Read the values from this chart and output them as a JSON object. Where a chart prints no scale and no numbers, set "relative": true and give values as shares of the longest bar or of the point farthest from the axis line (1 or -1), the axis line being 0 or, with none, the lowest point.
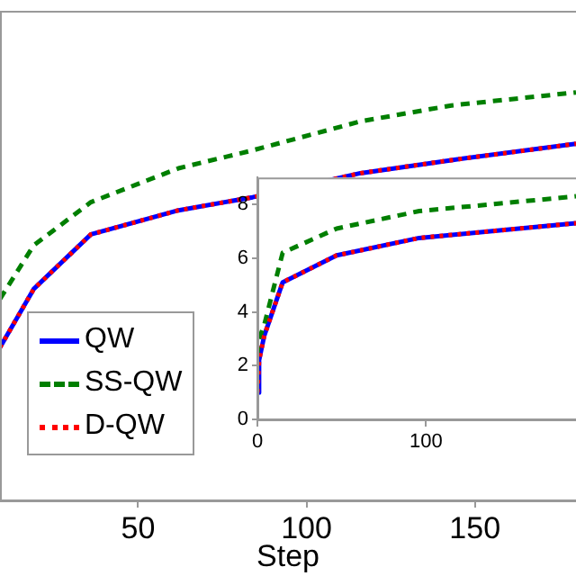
{
  "chart_data": [
    {
      "type": "line",
      "xlabel": "Step",
      "relative": true,
      "x": [
        9,
        19,
        36,
        62,
        84,
        116,
        143,
        180
      ],
      "xlim": [
        9,
        180
      ],
      "xticks": [
        50,
        100,
        150
      ],
      "grid": false,
      "legend": "bottom left",
      "marker": "none",
      "tick_labels": "x",
      "series": [
        {
          "name": "QW",
          "color": "#0000ff",
          "line_style": "solid",
          "values": [
            0.375,
            0.518,
            0.652,
            0.711,
            0.743,
            0.802,
            0.834,
            0.874
          ]
        },
        {
          "name": "SS-QW",
          "color": "#007f00",
          "line_style": "dashed",
          "values": [
            0.494,
            0.625,
            0.731,
            0.814,
            0.858,
            0.929,
            0.968,
            1
          ]
        },
        {
          "name": "D-QW",
          "color": "#ff0000",
          "line_style": "dotted",
          "values": [
            0.375,
            0.518,
            0.652,
            0.711,
            0.743,
            0.802,
            0.834,
            0.874
          ]
        }
      ]
    },
    {
      "type": "line",
      "x": [
        0,
        1,
        4,
        15,
        47,
        96,
        189
      ],
      "xlim": [
        0,
        189
      ],
      "xticks": [
        0,
        100
      ],
      "ylim": [
        0,
        9
      ],
      "yticks": [
        0,
        2,
        4,
        6,
        8
      ],
      "grid": false,
      "legend": false,
      "marker": "none",
      "series": [
        {
          "color": "#0000ff",
          "line_style": "solid",
          "values": [
            1,
            2.2,
            3.1,
            5.1,
            6.1,
            6.75,
            7.3
          ]
        },
        {
          "color": "#007f00",
          "line_style": "dashed",
          "values": [
            2.4,
            3,
            3.5,
            6.2,
            7.1,
            7.75,
            8.3
          ]
        },
        {
          "color": "#ff0000",
          "line_style": "dotted",
          "values": [
            1,
            2.2,
            3.1,
            5.1,
            6.1,
            6.75,
            7.3
          ]
        }
      ]
    }
  ]
}
